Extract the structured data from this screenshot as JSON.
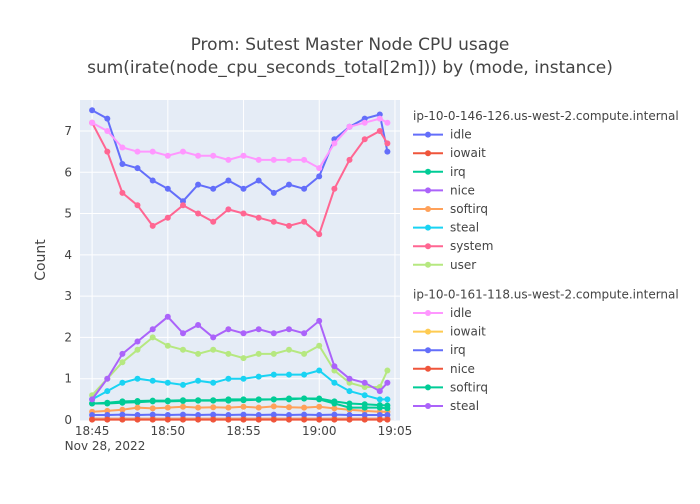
{
  "chart_data": {
    "type": "line",
    "title": "Prom: Sutest Master Node CPU usage",
    "subtitle": "sum(irate(node_cpu_seconds_total[2m])) by (mode, instance)",
    "xlabel": "",
    "ylabel": "Count",
    "ylim": [
      0,
      7.75
    ],
    "xlim": [
      "2022-11-28 18:44:12",
      "2022-11-28 19:05:20"
    ],
    "x_ticks": [
      "18:45",
      "18:50",
      "18:55",
      "19:00",
      "19:05"
    ],
    "x_tick_values": [
      "2022-11-28 18:45",
      "2022-11-28 18:50",
      "2022-11-28 18:55",
      "2022-11-28 19:00",
      "2022-11-28 19:05"
    ],
    "x_date_label": "Nov 28, 2022",
    "y_ticks": [
      0,
      1,
      2,
      3,
      4,
      5,
      6,
      7
    ],
    "grid": true,
    "markers": true,
    "legend_position": "right",
    "x": [
      "18:45:00",
      "18:46:00",
      "18:47:00",
      "18:48:00",
      "18:49:00",
      "18:50:00",
      "18:51:00",
      "18:52:00",
      "18:53:00",
      "18:54:00",
      "18:55:00",
      "18:56:00",
      "18:57:00",
      "18:58:00",
      "18:59:00",
      "19:00:00",
      "19:01:00",
      "19:02:00",
      "19:03:00",
      "19:04:00",
      "19:04:30"
    ],
    "legend_groups": [
      {
        "title": "ip-10-0-146-126.us-west-2.compute.internal",
        "series": [
          {
            "name": "idle",
            "color": "#636efa",
            "values": [
              7.5,
              7.3,
              6.2,
              6.1,
              5.8,
              5.6,
              5.3,
              5.7,
              5.6,
              5.8,
              5.6,
              5.8,
              5.5,
              5.7,
              5.6,
              5.9,
              6.8,
              7.1,
              7.3,
              7.4,
              6.5
            ]
          },
          {
            "name": "iowait",
            "color": "#ef553b",
            "values": [
              0.03,
              0.03,
              0.03,
              0.03,
              0.03,
              0.03,
              0.03,
              0.03,
              0.03,
              0.03,
              0.03,
              0.03,
              0.03,
              0.03,
              0.03,
              0.03,
              0.03,
              0.03,
              0.03,
              0.03,
              0.03
            ]
          },
          {
            "name": "irq",
            "color": "#00cc96",
            "values": [
              0.4,
              0.4,
              0.42,
              0.43,
              0.45,
              0.45,
              0.46,
              0.47,
              0.47,
              0.47,
              0.48,
              0.49,
              0.5,
              0.5,
              0.52,
              0.52,
              0.45,
              0.4,
              0.38,
              0.36,
              0.35
            ]
          },
          {
            "name": "nice",
            "color": "#ab63fa",
            "values": [
              0.02,
              0.02,
              0.02,
              0.02,
              0.02,
              0.02,
              0.02,
              0.02,
              0.02,
              0.02,
              0.02,
              0.02,
              0.02,
              0.02,
              0.02,
              0.02,
              0.02,
              0.02,
              0.02,
              0.02,
              0.02
            ]
          },
          {
            "name": "softirq",
            "color": "#ffa15a",
            "values": [
              0.2,
              0.22,
              0.25,
              0.3,
              0.28,
              0.3,
              0.32,
              0.3,
              0.31,
              0.3,
              0.32,
              0.3,
              0.33,
              0.31,
              0.3,
              0.32,
              0.28,
              0.25,
              0.22,
              0.2,
              0.2
            ]
          },
          {
            "name": "steal",
            "color": "#19d3f3",
            "values": [
              0.5,
              0.7,
              0.9,
              1.0,
              0.95,
              0.9,
              0.85,
              0.95,
              0.9,
              1.0,
              1.0,
              1.05,
              1.1,
              1.1,
              1.1,
              1.2,
              0.9,
              0.7,
              0.6,
              0.5,
              0.5
            ]
          },
          {
            "name": "system",
            "color": "#ff6692",
            "values": [
              7.2,
              6.5,
              5.5,
              5.2,
              4.7,
              4.9,
              5.2,
              5.0,
              4.8,
              5.1,
              5.0,
              4.9,
              4.8,
              4.7,
              4.8,
              4.5,
              5.6,
              6.3,
              6.8,
              7.0,
              6.7
            ]
          },
          {
            "name": "user",
            "color": "#b6e880",
            "values": [
              0.6,
              1.0,
              1.4,
              1.7,
              2.0,
              1.8,
              1.7,
              1.6,
              1.7,
              1.6,
              1.5,
              1.6,
              1.6,
              1.7,
              1.6,
              1.8,
              1.2,
              0.9,
              0.8,
              0.8,
              1.2
            ]
          }
        ]
      },
      {
        "title": "ip-10-0-161-118.us-west-2.compute.internal",
        "series": [
          {
            "name": "idle",
            "color": "#ff97ff",
            "values": [
              7.2,
              7.0,
              6.6,
              6.5,
              6.5,
              6.4,
              6.5,
              6.4,
              6.4,
              6.3,
              6.4,
              6.3,
              6.3,
              6.3,
              6.3,
              6.1,
              6.7,
              7.1,
              7.2,
              7.3,
              7.2
            ]
          },
          {
            "name": "iowait",
            "color": "#fecb52",
            "values": [
              0.02,
              0.02,
              0.02,
              0.02,
              0.02,
              0.02,
              0.02,
              0.02,
              0.02,
              0.02,
              0.02,
              0.02,
              0.02,
              0.02,
              0.02,
              0.02,
              0.02,
              0.02,
              0.02,
              0.02,
              0.02
            ]
          },
          {
            "name": "irq",
            "color": "#636efa",
            "values": [
              0.12,
              0.12,
              0.13,
              0.12,
              0.13,
              0.12,
              0.13,
              0.12,
              0.13,
              0.12,
              0.13,
              0.12,
              0.13,
              0.12,
              0.13,
              0.12,
              0.13,
              0.12,
              0.12,
              0.12,
              0.12
            ]
          },
          {
            "name": "nice",
            "color": "#ef553b",
            "values": [
              0.01,
              0.01,
              0.01,
              0.01,
              0.01,
              0.01,
              0.01,
              0.01,
              0.01,
              0.01,
              0.01,
              0.01,
              0.01,
              0.01,
              0.01,
              0.01,
              0.01,
              0.01,
              0.01,
              0.01,
              0.01
            ]
          },
          {
            "name": "softirq",
            "color": "#00cc96",
            "values": [
              0.4,
              0.42,
              0.45,
              0.46,
              0.47,
              0.47,
              0.48,
              0.48,
              0.48,
              0.5,
              0.5,
              0.5,
              0.5,
              0.52,
              0.52,
              0.5,
              0.4,
              0.3,
              0.3,
              0.3,
              0.28
            ]
          },
          {
            "name": "steal",
            "color": "#ab63fa",
            "values": [
              0.5,
              1.0,
              1.6,
              1.9,
              2.2,
              2.5,
              2.1,
              2.3,
              2.0,
              2.2,
              2.1,
              2.2,
              2.1,
              2.2,
              2.1,
              2.4,
              1.3,
              1.0,
              0.9,
              0.7,
              0.9
            ]
          }
        ]
      }
    ]
  }
}
